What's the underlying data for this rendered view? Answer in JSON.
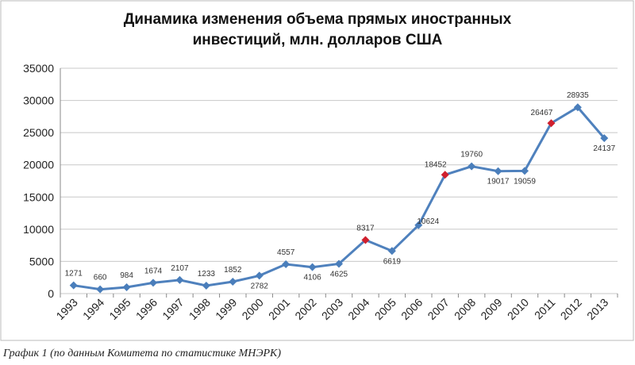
{
  "chart_data": {
    "type": "line",
    "title": [
      "Динамика изменения объема прямых иностранных",
      "инвестиций, млн. долларов США"
    ],
    "categories": [
      "1993",
      "1994",
      "1995",
      "1996",
      "1997",
      "1998",
      "1999",
      "2000",
      "2001",
      "2002",
      "2003",
      "2004",
      "2005",
      "2006",
      "2007",
      "2008",
      "2009",
      "2010",
      "2011",
      "2012",
      "2013"
    ],
    "series": [
      {
        "color": "#4f81bd",
        "values": [
          1271,
          660,
          984,
          1674,
          2107,
          1233,
          1852,
          2782,
          4557,
          4106,
          4625,
          8317,
          6619,
          10624,
          18452,
          19760,
          19017,
          19059,
          26467,
          28935,
          24137
        ],
        "marker_colors": [
          "#4a7ebb",
          "#4a7ebb",
          "#4a7ebb",
          "#4a7ebb",
          "#4a7ebb",
          "#4a7ebb",
          "#4a7ebb",
          "#4a7ebb",
          "#4a7ebb",
          "#4a7ebb",
          "#4a7ebb",
          "#d0202e",
          "#4a7ebb",
          "#4a7ebb",
          "#d0202e",
          "#4a7ebb",
          "#4a7ebb",
          "#4a7ebb",
          "#d0202e",
          "#4a7ebb",
          "#4a7ebb"
        ]
      }
    ],
    "ylim": [
      0,
      35000
    ],
    "yticks": [
      0,
      5000,
      10000,
      15000,
      20000,
      25000,
      30000,
      35000
    ],
    "grid": true,
    "caption": "График 1 (по данным Комитета по статистике МНЭРК)"
  }
}
